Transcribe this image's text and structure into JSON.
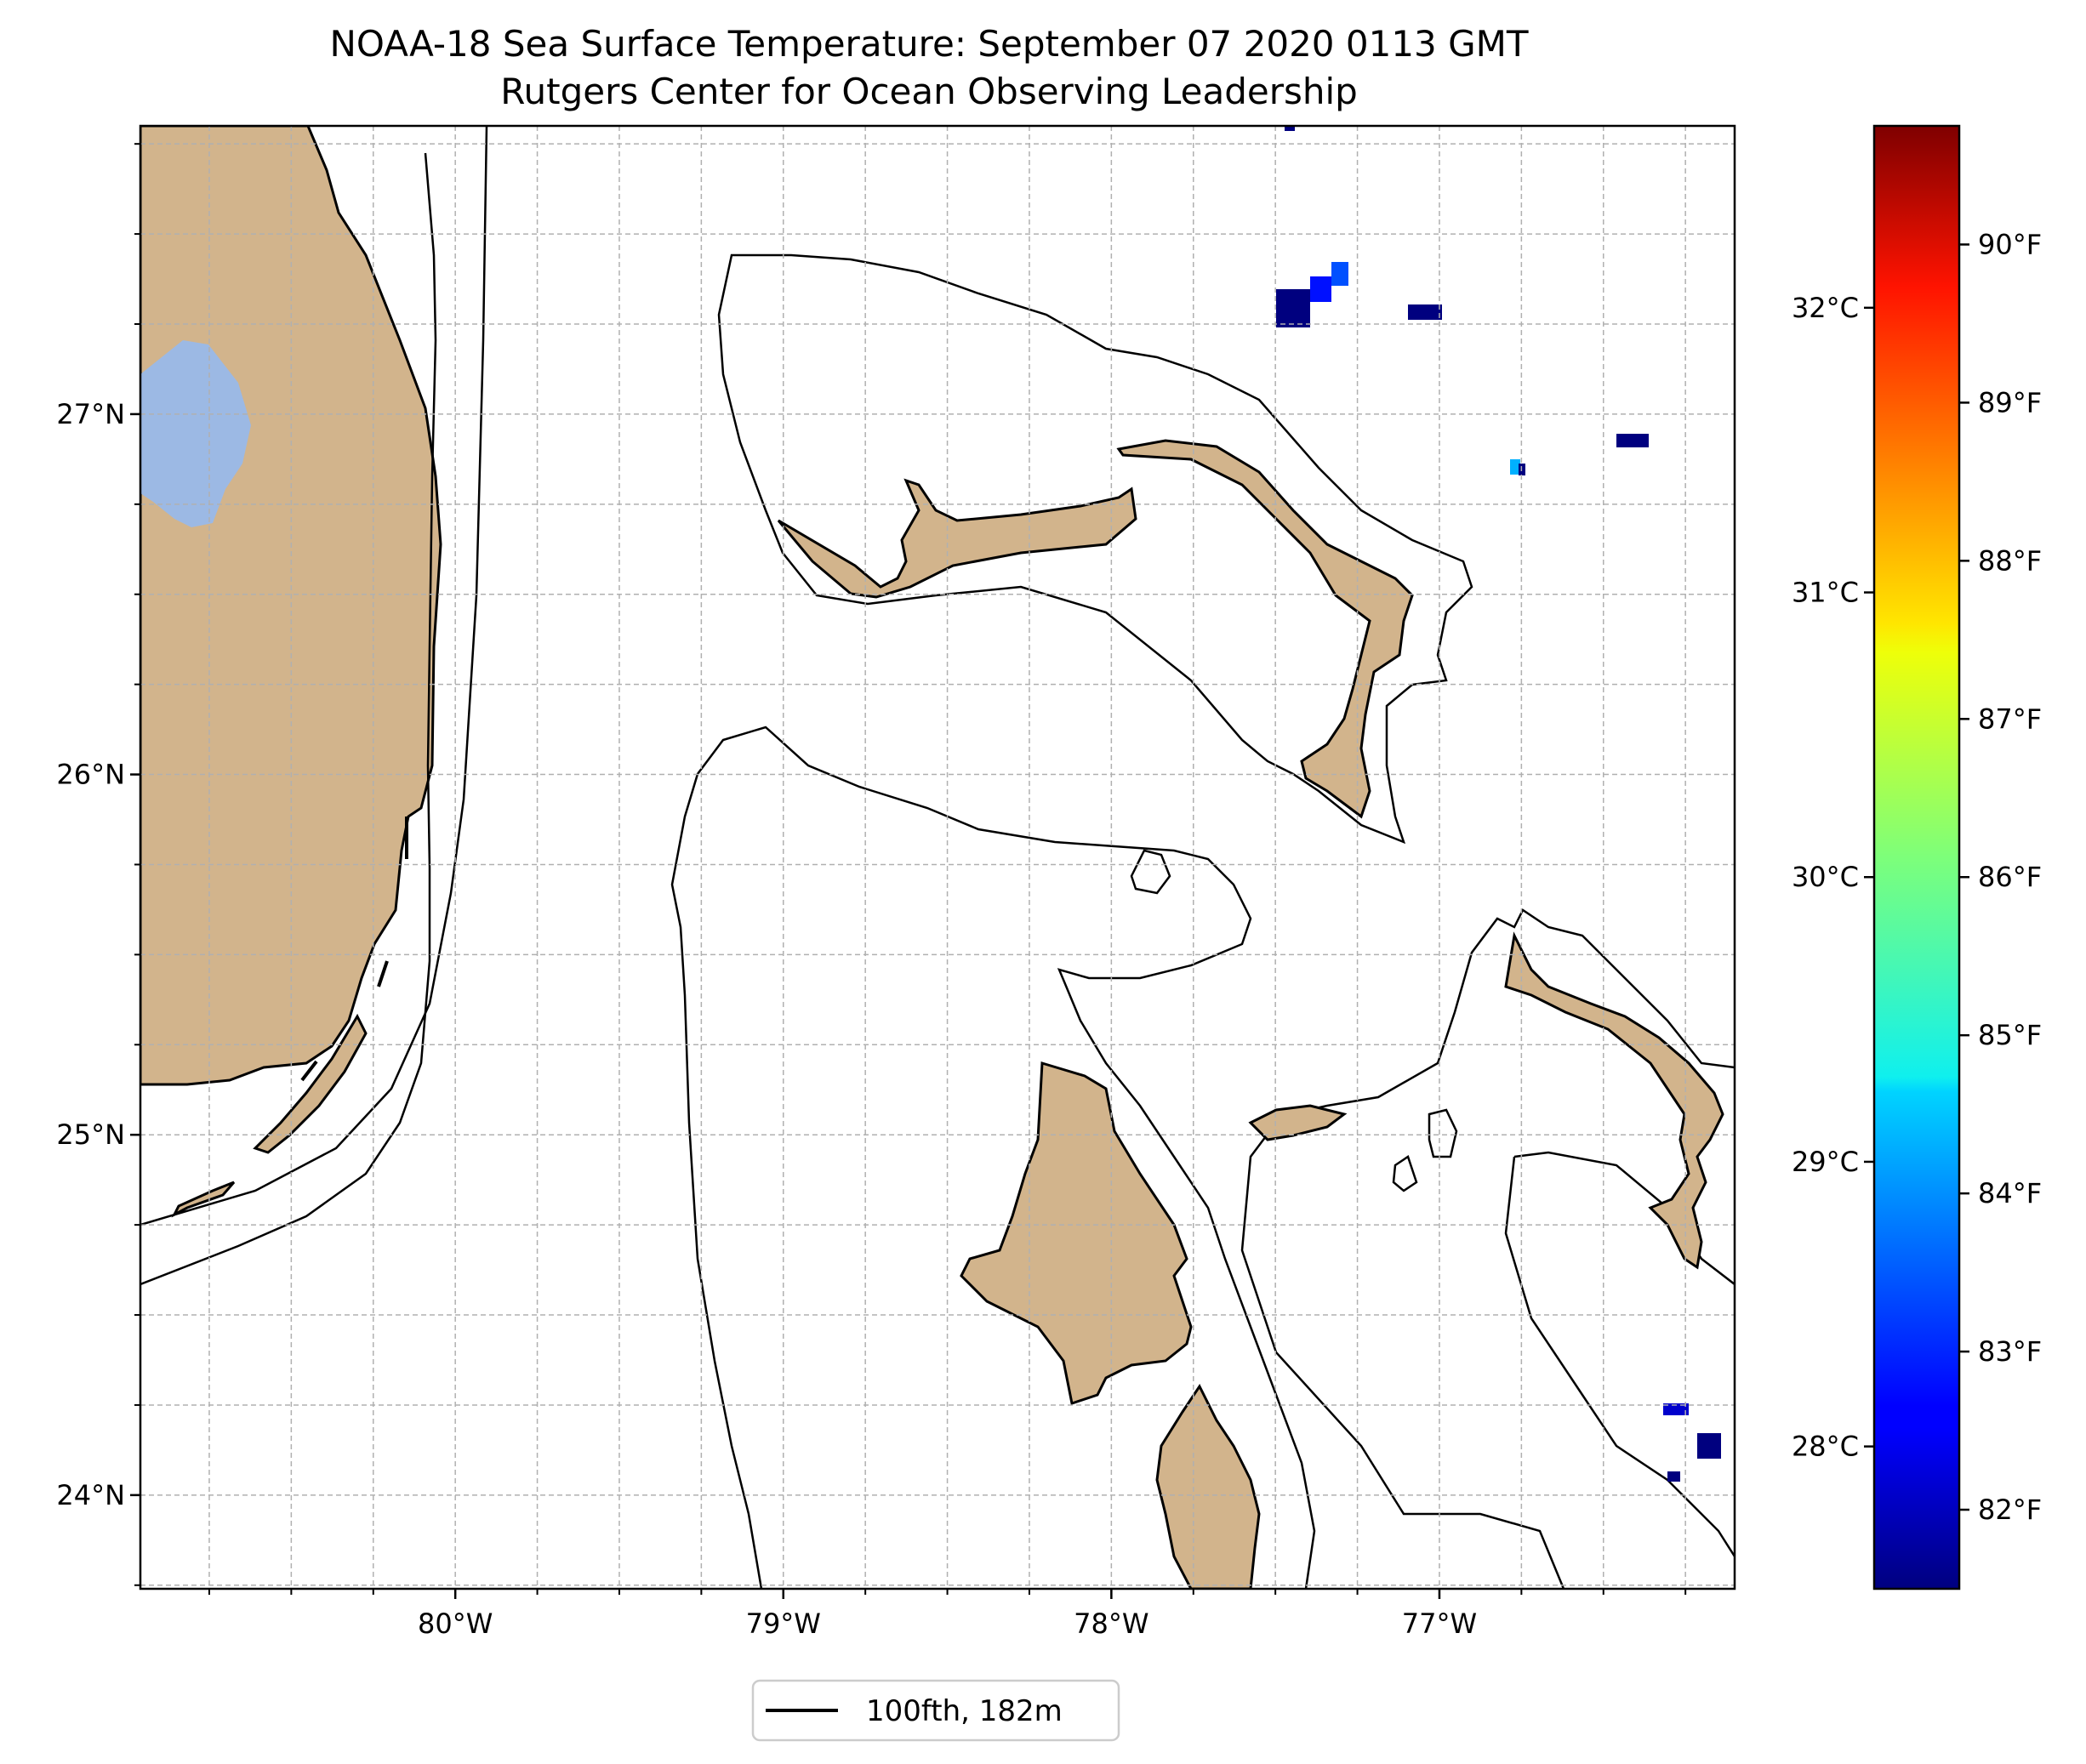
{
  "title": {
    "line1": "NOAA-18 Sea Surface Temperature: September 07 2020 0113 GMT",
    "line2": "Rutgers Center for Ocean Observing Leadership"
  },
  "map": {
    "lon_range": [
      -80.96,
      -76.1
    ],
    "lat_range": [
      23.74,
      27.8
    ],
    "grid": true,
    "colors": {
      "land": "#d2b48c",
      "lake": "#9cb9e4",
      "ocean": "#ffffff",
      "contour": "#000000"
    },
    "lon_ticks": [
      {
        "value": -80,
        "label": "80°W"
      },
      {
        "value": -79,
        "label": "79°W"
      },
      {
        "value": -78,
        "label": "78°W"
      },
      {
        "value": -77,
        "label": "77°W"
      }
    ],
    "lat_ticks": [
      {
        "value": 27,
        "label": "27°N"
      },
      {
        "value": 26,
        "label": "26°N"
      },
      {
        "value": 25,
        "label": "25°N"
      },
      {
        "value": 24,
        "label": "24°N"
      }
    ],
    "minor_lon_step": 0.25,
    "minor_lat_step": 0.25
  },
  "colorbar": {
    "colormap": "jet",
    "f_range": [
      81.5,
      90.75
    ],
    "celsius_ticks": [
      {
        "value": 28,
        "label": "28°C"
      },
      {
        "value": 29,
        "label": "29°C"
      },
      {
        "value": 30,
        "label": "30°C"
      },
      {
        "value": 31,
        "label": "31°C"
      },
      {
        "value": 32,
        "label": "32°C"
      }
    ],
    "fahrenheit_ticks": [
      {
        "value": 82,
        "label": "82°F"
      },
      {
        "value": 83,
        "label": "83°F"
      },
      {
        "value": 84,
        "label": "84°F"
      },
      {
        "value": 85,
        "label": "85°F"
      },
      {
        "value": 86,
        "label": "86°F"
      },
      {
        "value": 87,
        "label": "87°F"
      },
      {
        "value": 88,
        "label": "88°F"
      },
      {
        "value": 89,
        "label": "89°F"
      },
      {
        "value": 90,
        "label": "90°F"
      }
    ]
  },
  "legend": {
    "label": "100fth, 182m"
  }
}
